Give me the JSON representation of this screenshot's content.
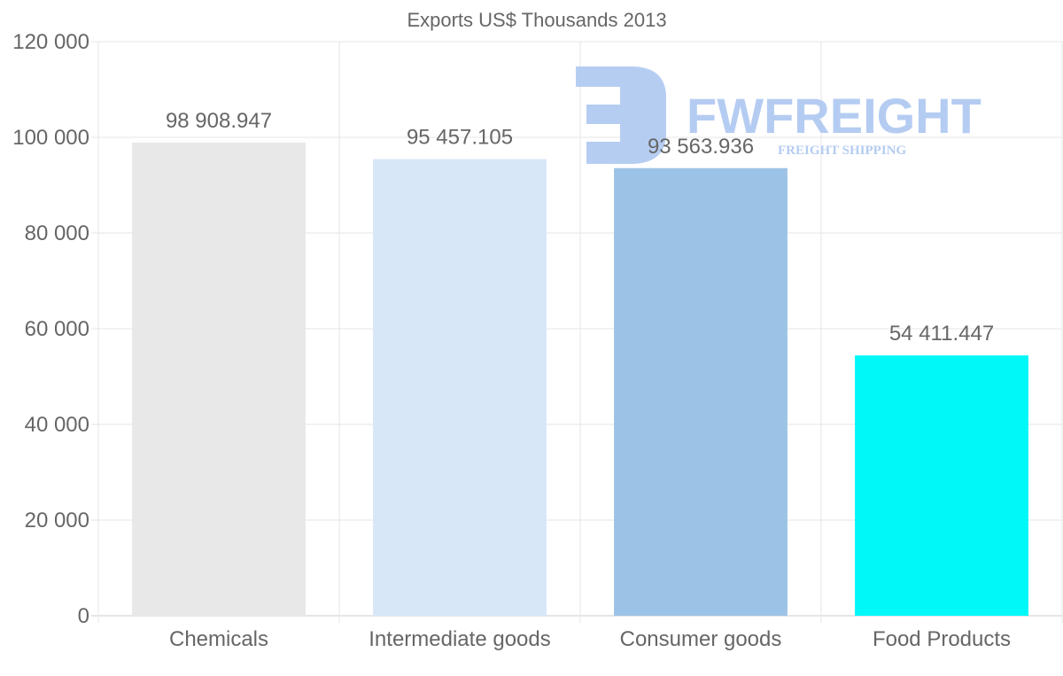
{
  "chart_data": {
    "type": "bar",
    "title": "Exports US$ Thousands 2013",
    "xlabel": "",
    "ylabel": "",
    "ylim": [
      0,
      120000
    ],
    "yticks": [
      0,
      20000,
      40000,
      60000,
      80000,
      100000,
      120000
    ],
    "ytick_labels": [
      "0",
      "20 000",
      "40 000",
      "60 000",
      "80 000",
      "100 000",
      "120 000"
    ],
    "categories": [
      "Chemicals",
      "Intermediate goods",
      "Consumer goods",
      "Food Products"
    ],
    "values": [
      98908.947,
      95457.105,
      93563.936,
      54411.447
    ],
    "data_labels": [
      "98 908.947",
      "95 457.105",
      "93 563.936",
      "54 411.447"
    ],
    "colors": [
      "#e8e8e8",
      "#d7e7f8",
      "#9cc3e6",
      "#00f8f8"
    ],
    "grid": true,
    "legend": "none"
  },
  "watermark": {
    "name": "FWFREIGHT",
    "tagline": "FREIGHT SHIPPING",
    "color": "#a9c4f0"
  }
}
